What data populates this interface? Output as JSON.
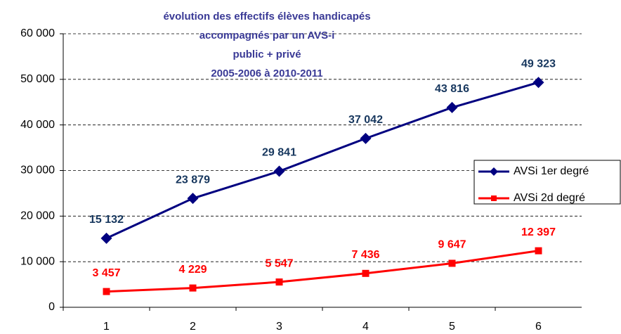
{
  "chart_data": {
    "type": "line",
    "title": [
      "évolution des effectifs élèves handicapés",
      "accompagnés par un AVS-i",
      "public + privé",
      "2005-2006 à 2010-2011"
    ],
    "categories": [
      "1",
      "2",
      "3",
      "4",
      "5",
      "6"
    ],
    "series": [
      {
        "name": "AVSi 1er degré",
        "color": "#000080",
        "label_color": "#17375e",
        "marker": "diamond",
        "values": [
          15132,
          23879,
          29841,
          37042,
          43816,
          49323
        ],
        "value_labels": [
          "15 132",
          "23 879",
          "29 841",
          "37 042",
          "43 816",
          "49 323"
        ]
      },
      {
        "name": "AVSi 2d degré",
        "color": "#ff0000",
        "label_color": "#ff0000",
        "marker": "square",
        "values": [
          3457,
          4229,
          5547,
          7436,
          9647,
          12397
        ],
        "value_labels": [
          "3 457",
          "4 229",
          "5 547",
          "7 436",
          "9 647",
          "12 397"
        ]
      }
    ],
    "ylim": [
      0,
      60000
    ],
    "yticks": [
      {
        "value": 0,
        "label": "0"
      },
      {
        "value": 10000,
        "label": "10 000"
      },
      {
        "value": 20000,
        "label": "20 000"
      },
      {
        "value": 30000,
        "label": "30 000"
      },
      {
        "value": 40000,
        "label": "40 000"
      },
      {
        "value": 50000,
        "label": "50 000"
      },
      {
        "value": 60000,
        "label": "60 000"
      }
    ],
    "grid": true,
    "legend": "right"
  }
}
